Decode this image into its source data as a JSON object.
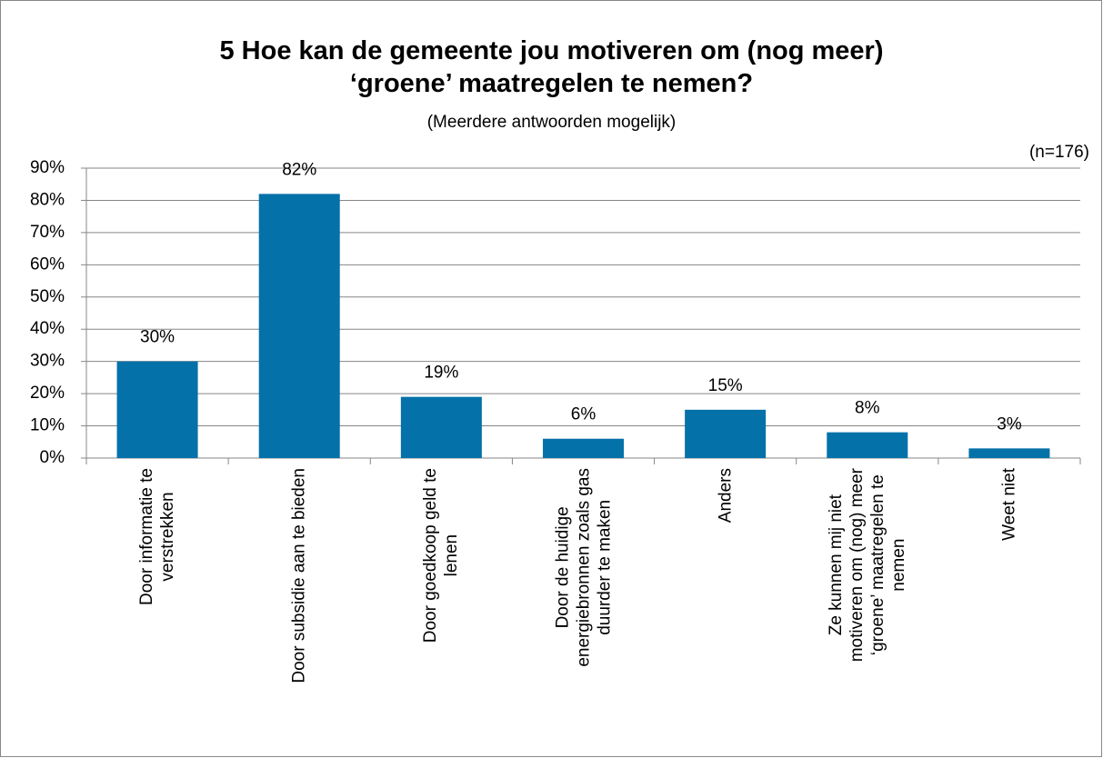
{
  "chart_data": {
    "type": "bar",
    "title": "5 Hoe kan de gemeente jou motiveren om (nog meer)\n‘groene’ maatregelen te nemen?",
    "subtitle": "(Meerdere antwoorden mogelijk)",
    "annotation": "(n=176)",
    "categories": [
      "Door informatie te\nverstrekken",
      "Door subsidie aan te bieden",
      "Door goedkoop geld te\nlenen",
      "Door de huidige\nenergiebronnen zoals gas\nduurder te maken",
      "Anders",
      "Ze kunnen mij niet\nmotiveren om (nog) meer\n‘groene’ maatregelen te\nnemen",
      "Weet niet"
    ],
    "values": [
      30,
      82,
      19,
      6,
      15,
      8,
      3
    ],
    "value_labels": [
      "30%",
      "82%",
      "19%",
      "6%",
      "15%",
      "8%",
      "3%"
    ],
    "color": "#0571a9",
    "ylim": [
      0,
      90
    ],
    "yticks": [
      {
        "value": 0,
        "label": "0%"
      },
      {
        "value": 10,
        "label": "10%"
      },
      {
        "value": 20,
        "label": "20%"
      },
      {
        "value": 30,
        "label": "30%"
      },
      {
        "value": 40,
        "label": "40%"
      },
      {
        "value": 50,
        "label": "50%"
      },
      {
        "value": 60,
        "label": "60%"
      },
      {
        "value": 70,
        "label": "70%"
      },
      {
        "value": 80,
        "label": "80%"
      },
      {
        "value": 90,
        "label": "90%"
      }
    ],
    "grid": true
  }
}
